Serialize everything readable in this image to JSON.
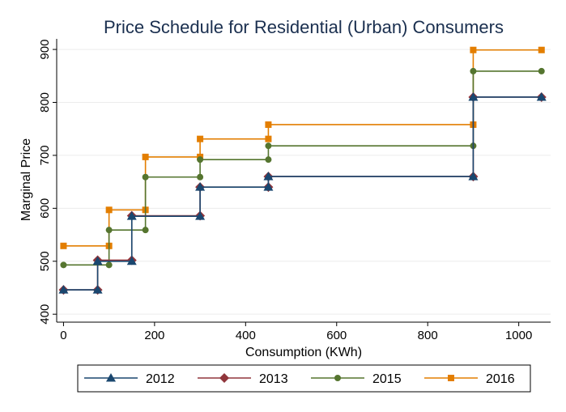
{
  "chart_data": {
    "type": "line",
    "step": true,
    "title": "Price Schedule for Residential (Urban) Consumers",
    "xlabel": "Consumption (KWh)",
    "ylabel": "Marginal Price",
    "xlim": [
      -15,
      1070
    ],
    "ylim": [
      385,
      920
    ],
    "xticks": [
      0,
      200,
      400,
      600,
      800,
      1000
    ],
    "yticks": [
      400,
      500,
      600,
      700,
      800,
      900
    ],
    "grid": true,
    "legend_position": "bottom",
    "series": [
      {
        "name": "2012",
        "color": "#1a476f",
        "marker": "triangle",
        "points": [
          [
            0,
            446
          ],
          [
            75,
            446
          ],
          [
            75,
            500
          ],
          [
            150,
            500
          ],
          [
            150,
            585
          ],
          [
            300,
            585
          ],
          [
            300,
            640
          ],
          [
            450,
            640
          ],
          [
            450,
            660
          ],
          [
            900,
            660
          ],
          [
            900,
            810
          ],
          [
            1050,
            810
          ]
        ]
      },
      {
        "name": "2013",
        "color": "#90353b",
        "marker": "diamond",
        "points": [
          [
            0,
            446
          ],
          [
            75,
            446
          ],
          [
            75,
            502
          ],
          [
            150,
            502
          ],
          [
            150,
            586
          ],
          [
            300,
            586
          ],
          [
            300,
            640
          ],
          [
            450,
            640
          ],
          [
            450,
            660
          ],
          [
            900,
            660
          ],
          [
            900,
            810
          ],
          [
            1050,
            810
          ]
        ]
      },
      {
        "name": "2015",
        "color": "#55752f",
        "marker": "circle",
        "points": [
          [
            0,
            493
          ],
          [
            100,
            493
          ],
          [
            100,
            559
          ],
          [
            180,
            559
          ],
          [
            180,
            659
          ],
          [
            300,
            659
          ],
          [
            300,
            692
          ],
          [
            450,
            692
          ],
          [
            450,
            718
          ],
          [
            900,
            718
          ],
          [
            900,
            859
          ],
          [
            1050,
            859
          ]
        ]
      },
      {
        "name": "2016",
        "color": "#e37e00",
        "marker": "square",
        "points": [
          [
            0,
            529
          ],
          [
            100,
            529
          ],
          [
            100,
            597
          ],
          [
            180,
            597
          ],
          [
            180,
            697
          ],
          [
            300,
            697
          ],
          [
            300,
            731
          ],
          [
            450,
            731
          ],
          [
            450,
            758
          ],
          [
            900,
            758
          ],
          [
            900,
            899
          ],
          [
            1050,
            899
          ]
        ]
      }
    ]
  }
}
